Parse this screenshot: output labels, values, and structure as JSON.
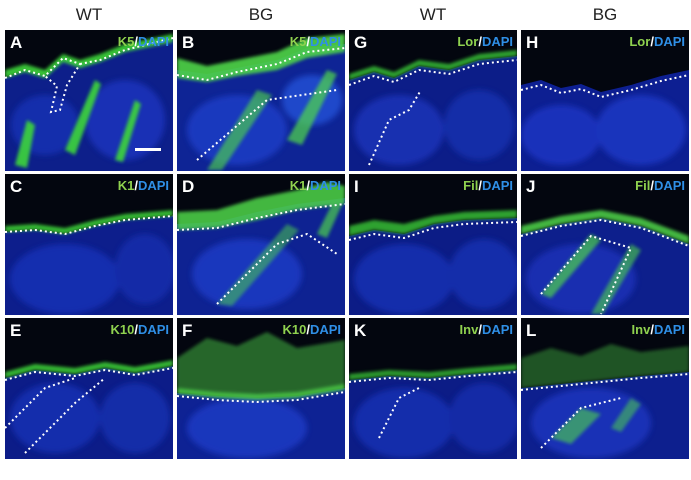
{
  "columns": [
    {
      "label": "WT"
    },
    {
      "label": "BG"
    },
    {
      "label": "WT"
    },
    {
      "label": "BG"
    }
  ],
  "panels": [
    {
      "letter": "A",
      "marker": "K5",
      "sep": "/",
      "counterstain": "DAPI"
    },
    {
      "letter": "B",
      "marker": "K5",
      "sep": "/",
      "counterstain": "DAPI"
    },
    {
      "letter": "G",
      "marker": "Lor",
      "sep": "/",
      "counterstain": "DAPI"
    },
    {
      "letter": "H",
      "marker": "Lor",
      "sep": "/",
      "counterstain": "DAPI"
    },
    {
      "letter": "C",
      "marker": "K1",
      "sep": "/",
      "counterstain": "DAPI"
    },
    {
      "letter": "D",
      "marker": "K1",
      "sep": "/",
      "counterstain": "DAPI"
    },
    {
      "letter": "I",
      "marker": "Fil",
      "sep": "/",
      "counterstain": "DAPI"
    },
    {
      "letter": "J",
      "marker": "Fil",
      "sep": "/",
      "counterstain": "DAPI"
    },
    {
      "letter": "E",
      "marker": "K10",
      "sep": "/",
      "counterstain": "DAPI"
    },
    {
      "letter": "F",
      "marker": "K10",
      "sep": "/",
      "counterstain": "DAPI"
    },
    {
      "letter": "K",
      "marker": "Inv",
      "sep": "/",
      "counterstain": "DAPI"
    },
    {
      "letter": "L",
      "marker": "Inv",
      "sep": "/",
      "counterstain": "DAPI"
    }
  ],
  "colors": {
    "marker": "#8fd14f",
    "dapi": "#2f8fe6",
    "background": "#050a18"
  }
}
